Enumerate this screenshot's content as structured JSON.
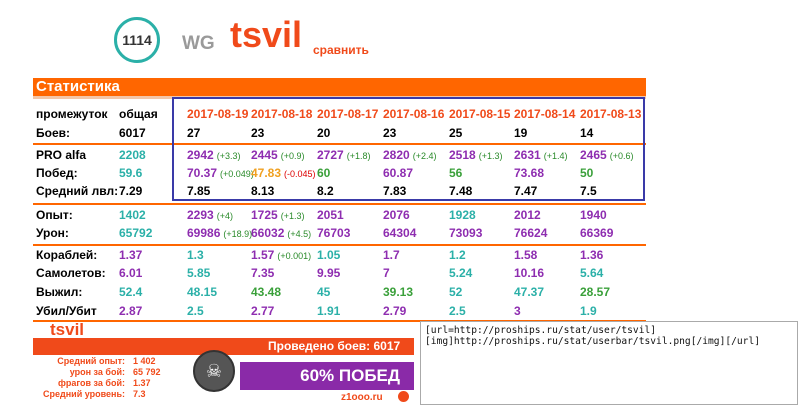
{
  "header": {
    "rank": "1114",
    "clan_tag": "WG",
    "nickname": "tsvil",
    "compare_label": "сравнить"
  },
  "stats": {
    "title": "Статистика",
    "columns": [
      "промежуток",
      "общая",
      "2017-08-19",
      "2017-08-18",
      "2017-08-17",
      "2017-08-16",
      "2017-08-15",
      "2017-08-14",
      "2017-08-13"
    ],
    "rows": [
      {
        "label": "Боев:",
        "cells": [
          [
            "6017",
            ""
          ],
          [
            "27",
            ""
          ],
          [
            "23",
            ""
          ],
          [
            "20",
            ""
          ],
          [
            "23",
            ""
          ],
          [
            "25",
            ""
          ],
          [
            "19",
            ""
          ],
          [
            "14",
            ""
          ]
        ],
        "colors": [
          "#000",
          "#000",
          "#000",
          "#000",
          "#000",
          "#000",
          "#000",
          "#000"
        ]
      },
      {
        "label": "PRO alfa",
        "cells": [
          [
            "2208",
            ""
          ],
          [
            "2942",
            "(+3.3)"
          ],
          [
            "2445",
            "(+0.9)"
          ],
          [
            "2727",
            "(+1.8)"
          ],
          [
            "2820",
            "(+2.4)"
          ],
          [
            "2518",
            "(+1.3)"
          ],
          [
            "2631",
            "(+1.4)"
          ],
          [
            "2465",
            "(+0.6)"
          ]
        ],
        "colors": [
          "#2bb0a8",
          "#8e2db0",
          "#8e2db0",
          "#8e2db0",
          "#8e2db0",
          "#8e2db0",
          "#8e2db0",
          "#8e2db0"
        ]
      },
      {
        "label": "Побед:",
        "cells": [
          [
            "59.6",
            ""
          ],
          [
            "70.37",
            "(+0.049)"
          ],
          [
            "47.83",
            "(-0.045)"
          ],
          [
            "60",
            ""
          ],
          [
            "60.87",
            ""
          ],
          [
            "56",
            ""
          ],
          [
            "73.68",
            ""
          ],
          [
            "50",
            ""
          ]
        ],
        "colors": [
          "#2bb0a8",
          "#8e2db0",
          "#f0a020",
          "#3aa03a",
          "#8e2db0",
          "#3aa03a",
          "#8e2db0",
          "#3aa03a"
        ]
      },
      {
        "label": "Средний лвл:",
        "cells": [
          [
            "7.29",
            ""
          ],
          [
            "7.85",
            ""
          ],
          [
            "8.13",
            ""
          ],
          [
            "8.2",
            ""
          ],
          [
            "7.83",
            ""
          ],
          [
            "7.48",
            ""
          ],
          [
            "7.47",
            ""
          ],
          [
            "7.5",
            ""
          ]
        ],
        "colors": [
          "#000",
          "#000",
          "#000",
          "#000",
          "#000",
          "#000",
          "#000",
          "#000"
        ]
      },
      {
        "label": "Опыт:",
        "cells": [
          [
            "1402",
            ""
          ],
          [
            "2293",
            "(+4)"
          ],
          [
            "1725",
            "(+1.3)"
          ],
          [
            "2051",
            ""
          ],
          [
            "2076",
            ""
          ],
          [
            "1928",
            ""
          ],
          [
            "2012",
            ""
          ],
          [
            "1940",
            ""
          ]
        ],
        "colors": [
          "#2bb0a8",
          "#8e2db0",
          "#8e2db0",
          "#8e2db0",
          "#8e2db0",
          "#2bb0a8",
          "#8e2db0",
          "#8e2db0"
        ]
      },
      {
        "label": "Урон:",
        "cells": [
          [
            "65792",
            ""
          ],
          [
            "69986",
            "(+18.9)"
          ],
          [
            "66032",
            "(+4.5)"
          ],
          [
            "76703",
            ""
          ],
          [
            "64304",
            ""
          ],
          [
            "73093",
            ""
          ],
          [
            "76624",
            ""
          ],
          [
            "66369",
            ""
          ]
        ],
        "colors": [
          "#2bb0a8",
          "#8e2db0",
          "#8e2db0",
          "#8e2db0",
          "#8e2db0",
          "#8e2db0",
          "#8e2db0",
          "#8e2db0"
        ]
      },
      {
        "label": "Кораблей:",
        "cells": [
          [
            "1.37",
            ""
          ],
          [
            "1.3",
            ""
          ],
          [
            "1.57",
            "(+0.001)"
          ],
          [
            "1.05",
            ""
          ],
          [
            "1.7",
            ""
          ],
          [
            "1.2",
            ""
          ],
          [
            "1.58",
            ""
          ],
          [
            "1.36",
            ""
          ]
        ],
        "colors": [
          "#8e2db0",
          "#2bb0a8",
          "#8e2db0",
          "#2bb0a8",
          "#8e2db0",
          "#2bb0a8",
          "#8e2db0",
          "#8e2db0"
        ]
      },
      {
        "label": "Самолетов:",
        "cells": [
          [
            "6.01",
            ""
          ],
          [
            "5.85",
            ""
          ],
          [
            "7.35",
            ""
          ],
          [
            "9.95",
            ""
          ],
          [
            "7",
            ""
          ],
          [
            "5.24",
            ""
          ],
          [
            "10.16",
            ""
          ],
          [
            "5.64",
            ""
          ]
        ],
        "colors": [
          "#8e2db0",
          "#2bb0a8",
          "#8e2db0",
          "#8e2db0",
          "#8e2db0",
          "#2bb0a8",
          "#8e2db0",
          "#2bb0a8"
        ]
      },
      {
        "label": "Выжил:",
        "cells": [
          [
            "52.4",
            ""
          ],
          [
            "48.15",
            ""
          ],
          [
            "43.48",
            ""
          ],
          [
            "45",
            ""
          ],
          [
            "39.13",
            ""
          ],
          [
            "52",
            ""
          ],
          [
            "47.37",
            ""
          ],
          [
            "28.57",
            ""
          ]
        ],
        "colors": [
          "#2bb0a8",
          "#2bb0a8",
          "#3aa03a",
          "#2bb0a8",
          "#3aa03a",
          "#2bb0a8",
          "#2bb0a8",
          "#3aa03a"
        ]
      },
      {
        "label": "Убил/Убит",
        "cells": [
          [
            "2.87",
            ""
          ],
          [
            "2.5",
            ""
          ],
          [
            "2.77",
            ""
          ],
          [
            "1.91",
            ""
          ],
          [
            "2.79",
            ""
          ],
          [
            "2.5",
            ""
          ],
          [
            "3",
            ""
          ],
          [
            "1.9",
            ""
          ]
        ],
        "colors": [
          "#8e2db0",
          "#2bb0a8",
          "#8e2db0",
          "#2bb0a8",
          "#8e2db0",
          "#2bb0a8",
          "#8e2db0",
          "#2bb0a8"
        ]
      }
    ]
  },
  "signature": {
    "name": "tsvil",
    "battles_text": "Проведено боев: 6017",
    "lines": [
      {
        "label": "Средний опыт:",
        "value": "1 402"
      },
      {
        "label": "урон за бой:",
        "value": "65 792"
      },
      {
        "label": "фрагов за бой:",
        "value": "1.37"
      },
      {
        "label": "Средний уровень:",
        "value": "7.3"
      }
    ],
    "win_text": "60% ПОБЕД",
    "site": "z1ooo.ru"
  },
  "code": {
    "text": "[url=http://proships.ru/stat/user/tsvil]\n[img]http://proships.ru/stat/userbar/tsvil.png[/img][/url]"
  }
}
